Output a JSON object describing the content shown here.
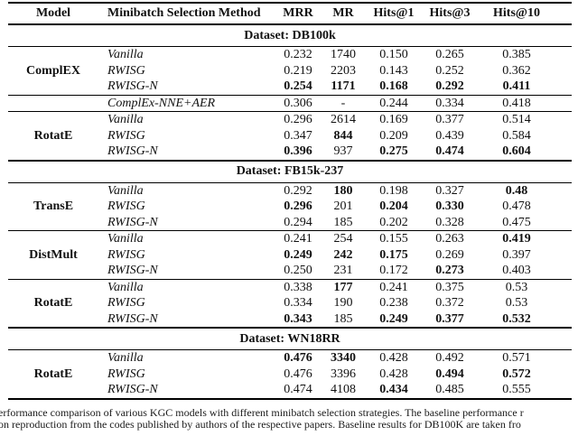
{
  "table": {
    "columns": [
      "Model",
      "Minibatch Selection Method",
      "MRR",
      "MR",
      "Hits@1",
      "Hits@3",
      "Hits@10"
    ],
    "sections": [
      {
        "label": "Dataset: DB100k",
        "groups": [
          {
            "model": "ComplEX",
            "rows": [
              {
                "method": "Vanilla",
                "values": [
                  "0.232",
                  "1740",
                  "0.150",
                  "0.265",
                  "0.385"
                ],
                "bold": []
              },
              {
                "method": "RWISG",
                "values": [
                  "0.219",
                  "2203",
                  "0.143",
                  "0.252",
                  "0.362"
                ],
                "bold": []
              },
              {
                "method": "RWISG-N",
                "values": [
                  "0.254",
                  "1171",
                  "0.168",
                  "0.292",
                  "0.411"
                ],
                "bold": [
                  0,
                  1,
                  2,
                  3,
                  4
                ]
              }
            ]
          },
          {
            "model": "",
            "rows": [
              {
                "method": "ComplEx-NNE+AER",
                "values": [
                  "0.306",
                  "-",
                  "0.244",
                  "0.334",
                  "0.418"
                ],
                "bold": []
              }
            ]
          },
          {
            "model": "RotatE",
            "rows": [
              {
                "method": "Vanilla",
                "values": [
                  "0.296",
                  "2614",
                  "0.169",
                  "0.377",
                  "0.514"
                ],
                "bold": []
              },
              {
                "method": "RWISG",
                "values": [
                  "0.347",
                  "844",
                  "0.209",
                  "0.439",
                  "0.584"
                ],
                "bold": [
                  1
                ]
              },
              {
                "method": "RWISG-N",
                "values": [
                  "0.396",
                  "937",
                  "0.275",
                  "0.474",
                  "0.604"
                ],
                "bold": [
                  0,
                  2,
                  3,
                  4
                ]
              }
            ]
          }
        ]
      },
      {
        "label": "Dataset: FB15k-237",
        "groups": [
          {
            "model": "TransE",
            "rows": [
              {
                "method": "Vanilla",
                "values": [
                  "0.292",
                  "180",
                  "0.198",
                  "0.327",
                  "0.48"
                ],
                "bold": [
                  1,
                  4
                ]
              },
              {
                "method": "RWISG",
                "values": [
                  "0.296",
                  "201",
                  "0.204",
                  "0.330",
                  "0.478"
                ],
                "bold": [
                  0,
                  2,
                  3
                ]
              },
              {
                "method": "RWISG-N",
                "values": [
                  "0.294",
                  "185",
                  "0.202",
                  "0.328",
                  "0.475"
                ],
                "bold": []
              }
            ]
          },
          {
            "model": "DistMult",
            "rows": [
              {
                "method": "Vanilla",
                "values": [
                  "0.241",
                  "254",
                  "0.155",
                  "0.263",
                  "0.419"
                ],
                "bold": [
                  4
                ]
              },
              {
                "method": "RWISG",
                "values": [
                  "0.249",
                  "242",
                  "0.175",
                  "0.269",
                  "0.397"
                ],
                "bold": [
                  0,
                  1,
                  2
                ]
              },
              {
                "method": "RWISG-N",
                "values": [
                  "0.250",
                  "231",
                  "0.172",
                  "0.273",
                  "0.403"
                ],
                "bold": [
                  3
                ]
              }
            ]
          },
          {
            "model": "RotatE",
            "rows": [
              {
                "method": "Vanilla",
                "values": [
                  "0.338",
                  "177",
                  "0.241",
                  "0.375",
                  "0.53"
                ],
                "bold": [
                  1
                ]
              },
              {
                "method": "RWISG",
                "values": [
                  "0.334",
                  "190",
                  "0.238",
                  "0.372",
                  "0.53"
                ],
                "bold": []
              },
              {
                "method": "RWISG-N",
                "values": [
                  "0.343",
                  "185",
                  "0.249",
                  "0.377",
                  "0.532"
                ],
                "bold": [
                  0,
                  2,
                  3,
                  4
                ]
              }
            ]
          }
        ]
      },
      {
        "label": "Dataset: WN18RR",
        "groups": [
          {
            "model": "RotatE",
            "rows": [
              {
                "method": "Vanilla",
                "values": [
                  "0.476",
                  "3340",
                  "0.428",
                  "0.492",
                  "0.571"
                ],
                "bold": [
                  0,
                  1
                ]
              },
              {
                "method": "RWISG",
                "values": [
                  "0.476",
                  "3396",
                  "0.428",
                  "0.494",
                  "0.572"
                ],
                "bold": [
                  3,
                  4
                ]
              },
              {
                "method": "RWISG-N",
                "values": [
                  "0.474",
                  "4108",
                  "0.434",
                  "0.485",
                  "0.555"
                ],
                "bold": [
                  2
                ]
              }
            ]
          }
        ]
      }
    ]
  },
  "caption": {
    "line1": "erformance comparison of various KGC models with different minibatch selection strategies. The baseline performance r",
    "line2": "on reproduction from the codes published by authors of the respective papers. Baseline results for DB100K are taken fro"
  }
}
